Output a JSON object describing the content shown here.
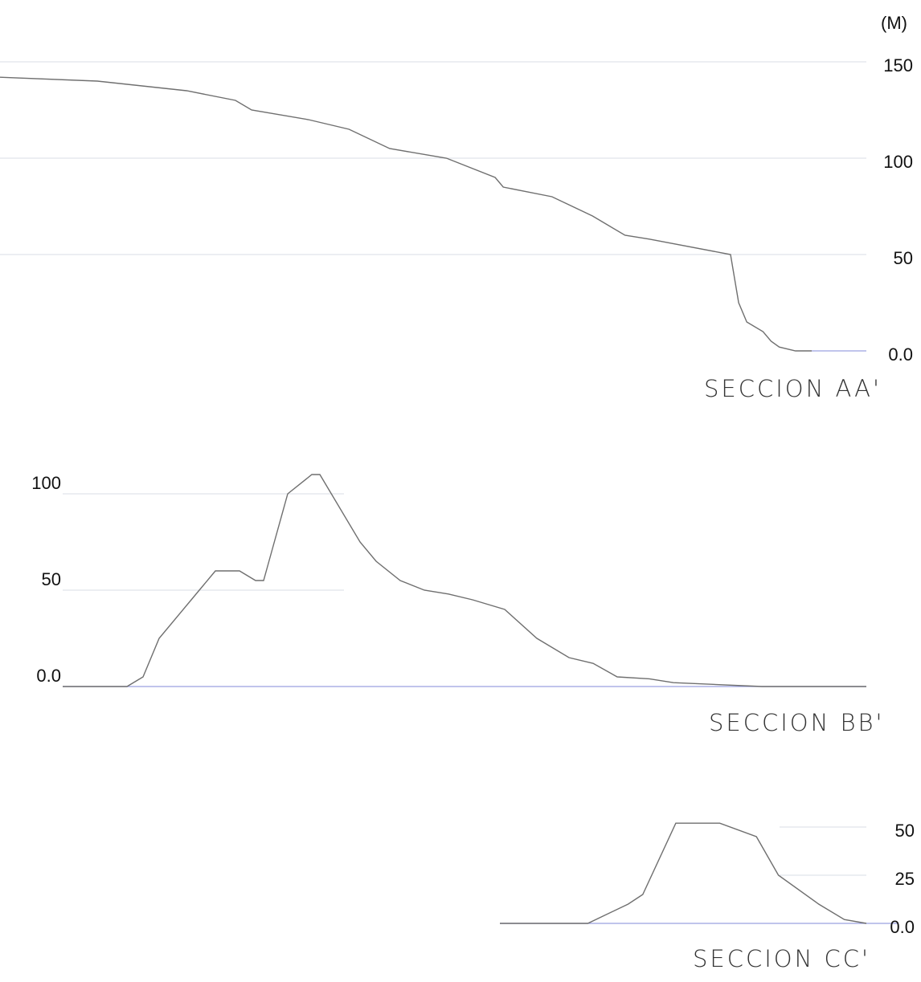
{
  "unit_label": "(M)",
  "chart_data": [
    {
      "type": "line",
      "title": "SECCION AA'",
      "ylim": [
        0,
        150
      ],
      "y_ticks": [
        "150",
        "100",
        "50",
        "0.0"
      ],
      "y_tick_values": [
        150,
        100,
        50,
        0
      ],
      "x_relative": [
        0,
        0.12,
        0.23,
        0.29,
        0.31,
        0.38,
        0.43,
        0.48,
        0.55,
        0.61,
        0.62,
        0.68,
        0.73,
        0.75,
        0.77,
        0.8,
        0.9,
        0.91,
        0.92,
        0.94,
        0.95,
        0.96,
        0.98,
        1.0
      ],
      "y": [
        142,
        140,
        135,
        130,
        125,
        120,
        115,
        105,
        100,
        90,
        85,
        80,
        70,
        65,
        60,
        58,
        50,
        25,
        15,
        10,
        5,
        2,
        0,
        0
      ],
      "color": "#6f6f6f"
    },
    {
      "type": "line",
      "title": "SECCION BB'",
      "ylim": [
        0,
        110
      ],
      "y_ticks": [
        "100",
        "50",
        "0.0"
      ],
      "y_tick_values": [
        100,
        50,
        0
      ],
      "x_relative": [
        0,
        0.08,
        0.1,
        0.12,
        0.17,
        0.19,
        0.22,
        0.24,
        0.25,
        0.26,
        0.28,
        0.31,
        0.32,
        0.37,
        0.39,
        0.42,
        0.45,
        0.48,
        0.51,
        0.55,
        0.59,
        0.63,
        0.66,
        0.69,
        0.73,
        0.76,
        0.87,
        1.0
      ],
      "y": [
        0,
        0,
        5,
        25,
        50,
        60,
        60,
        55,
        55,
        70,
        100,
        110,
        110,
        75,
        65,
        55,
        50,
        48,
        45,
        40,
        25,
        15,
        12,
        5,
        4,
        2,
        0,
        0
      ],
      "color": "#6f6f6f"
    },
    {
      "type": "line",
      "title": "SECCION CC'",
      "ylim": [
        0,
        55
      ],
      "y_ticks": [
        "50",
        "25",
        "0.0"
      ],
      "y_tick_values": [
        50,
        25,
        0
      ],
      "x_relative": [
        0,
        0.24,
        0.35,
        0.39,
        0.48,
        0.6,
        0.7,
        0.76,
        0.87,
        0.94,
        1.0
      ],
      "y": [
        0,
        0,
        10,
        15,
        52,
        52,
        45,
        25,
        10,
        2,
        0
      ],
      "color": "#6f6f6f"
    }
  ]
}
